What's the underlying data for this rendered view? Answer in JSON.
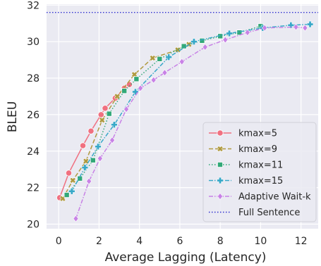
{
  "chart_data": {
    "type": "line",
    "xlabel": "Average Lagging (Latency)",
    "ylabel": "BLEU",
    "xlim": [
      -0.6,
      12.85
    ],
    "ylim": [
      19.75,
      32.05
    ],
    "xticks": [
      0,
      2,
      4,
      6,
      8,
      10,
      12
    ],
    "yticks": [
      20,
      22,
      24,
      26,
      28,
      30,
      32
    ],
    "grid": true,
    "legend_position": "lower-right",
    "series": [
      {
        "name": "kmax=5",
        "color": "#f07080",
        "dash": "solid",
        "marker": "circle",
        "x": [
          0.05,
          0.5,
          1.2,
          1.6,
          2.1,
          2.3,
          2.8,
          3.25,
          3.5
        ],
        "y": [
          21.45,
          22.8,
          24.3,
          25.1,
          26.0,
          26.35,
          26.9,
          27.45,
          27.65
        ]
      },
      {
        "name": "kmax=9",
        "color": "#b09a40",
        "dash": "dashed",
        "marker": "x",
        "x": [
          0.2,
          0.7,
          1.35,
          2.15,
          2.9,
          3.75,
          4.65,
          5.9,
          6.45
        ],
        "y": [
          21.4,
          22.4,
          23.45,
          25.7,
          27.0,
          28.2,
          29.1,
          29.55,
          29.85
        ]
      },
      {
        "name": "kmax=11",
        "color": "#32a878",
        "dash": "dotted",
        "marker": "square",
        "x": [
          0.4,
          1.05,
          1.7,
          2.5,
          3.25,
          3.85,
          5.0,
          6.2,
          7.1,
          8.0,
          8.95,
          10.0
        ],
        "y": [
          21.6,
          22.5,
          23.5,
          26.05,
          27.3,
          27.95,
          29.05,
          29.75,
          30.05,
          30.3,
          30.5,
          30.85
        ]
      },
      {
        "name": "kmax=15",
        "color": "#38a8c8",
        "dash": "dashdot",
        "marker": "plus",
        "x": [
          0.65,
          1.3,
          1.95,
          2.75,
          3.8,
          5.45,
          6.7,
          8.45,
          10.1,
          11.5,
          12.45
        ],
        "y": [
          21.8,
          23.1,
          24.25,
          25.45,
          27.25,
          29.15,
          30.0,
          30.45,
          30.75,
          30.9,
          30.95
        ]
      },
      {
        "name": "Adaptive Wait-k",
        "color": "#c882e6",
        "dash": "dashdot",
        "marker": "diamond",
        "x": [
          0.85,
          1.5,
          2.05,
          2.65,
          3.35,
          4.05,
          4.7,
          5.25,
          6.1,
          7.25,
          8.25,
          9.35,
          10.2,
          11.75,
          12.2
        ],
        "y": [
          20.3,
          22.35,
          23.6,
          24.6,
          26.3,
          27.45,
          27.9,
          28.3,
          28.9,
          29.7,
          30.1,
          30.5,
          30.75,
          30.8,
          30.75
        ]
      }
    ],
    "reference_lines": [
      {
        "name": "Full Sentence",
        "y": 31.6,
        "color": "#3030d0",
        "dash": "dotted"
      }
    ]
  }
}
